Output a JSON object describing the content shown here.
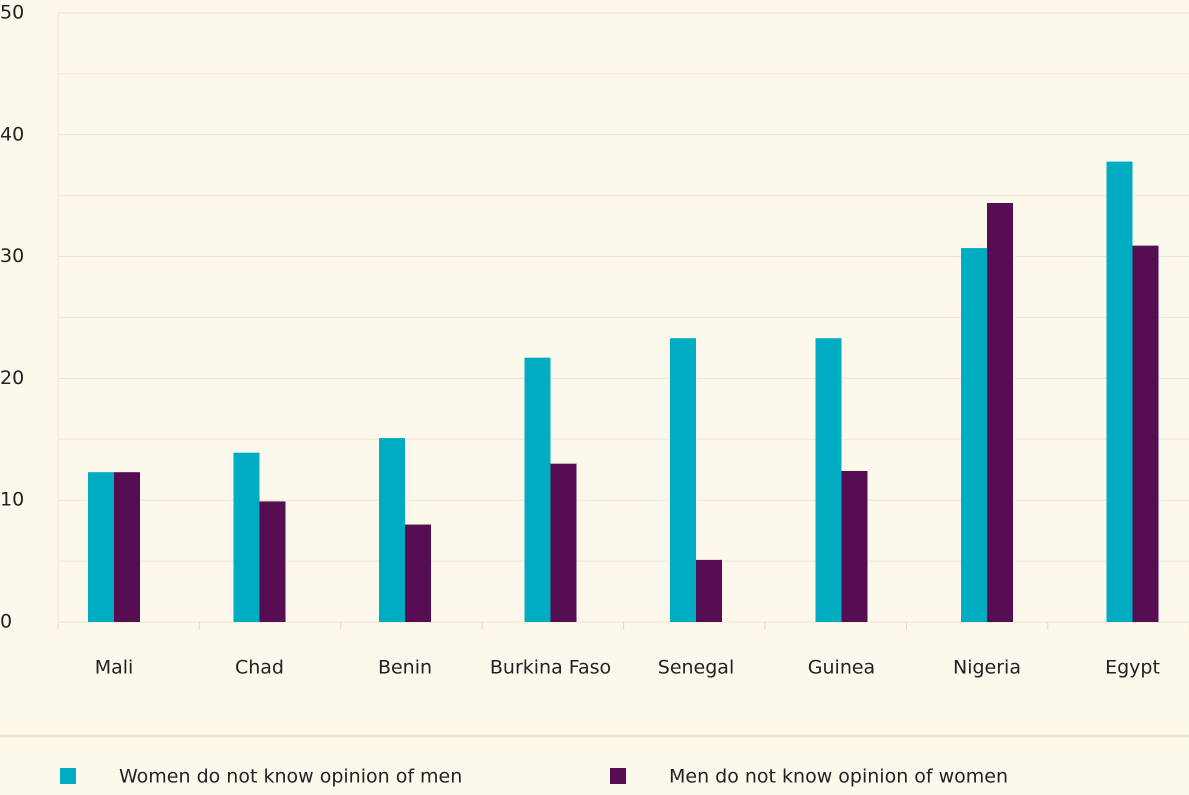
{
  "chart_data": {
    "type": "bar",
    "categories": [
      "Mali",
      "Chad",
      "Benin",
      "Burkina Faso",
      "Senegal",
      "Guinea",
      "Nigeria",
      "Egypt"
    ],
    "series": [
      {
        "name": "Women do not know opinion of men",
        "color": "#00acc1",
        "values": [
          12.3,
          13.9,
          15.1,
          21.7,
          23.3,
          23.3,
          30.7,
          37.8
        ]
      },
      {
        "name": "Men do not know opinion of women",
        "color": "#560d52",
        "values": [
          12.3,
          9.9,
          8.0,
          13.0,
          5.1,
          12.4,
          34.4,
          30.9
        ]
      }
    ],
    "ylim": [
      0,
      50
    ],
    "yticks": [
      0,
      10,
      20,
      30,
      40,
      50
    ],
    "minor_grid": [
      5,
      15,
      25,
      35,
      45
    ],
    "grid": true,
    "legend": "bottom"
  }
}
